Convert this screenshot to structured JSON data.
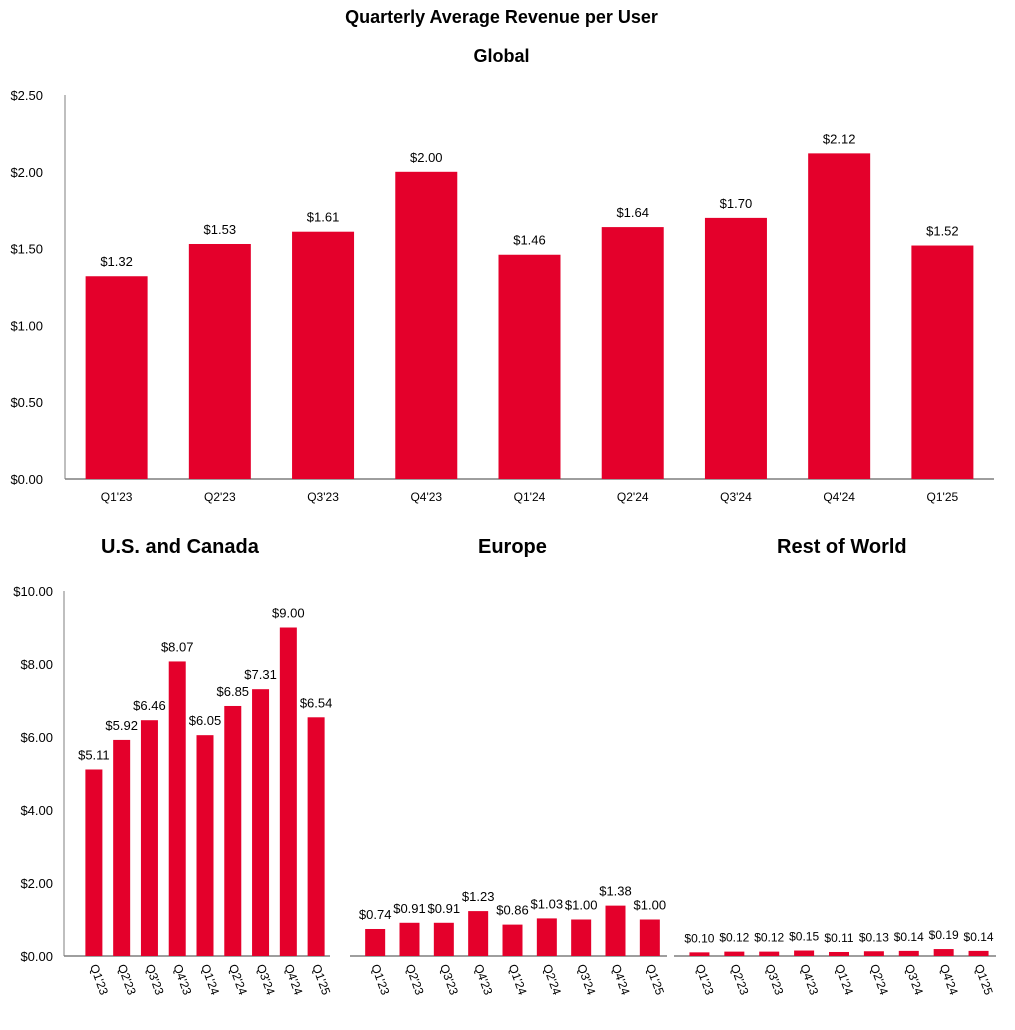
{
  "title": "Quarterly Average Revenue per User",
  "colors": {
    "bar": "#E4002B",
    "axis": "#7f7f7f"
  },
  "chart_data": [
    {
      "type": "bar",
      "title": "Global",
      "categories": [
        "Q1'23",
        "Q2'23",
        "Q3'23",
        "Q4'23",
        "Q1'24",
        "Q2'24",
        "Q3'24",
        "Q4'24",
        "Q1'25"
      ],
      "values": [
        1.32,
        1.53,
        1.61,
        2.0,
        1.46,
        1.64,
        1.7,
        2.12,
        1.52
      ],
      "value_labels": [
        "$1.32",
        "$1.53",
        "$1.61",
        "$2.00",
        "$1.46",
        "$1.64",
        "$1.70",
        "$2.12",
        "$1.52"
      ],
      "yticks": [
        "$0.00",
        "$0.50",
        "$1.00",
        "$1.50",
        "$2.00",
        "$2.50"
      ],
      "ylim": [
        0,
        2.5
      ],
      "xlabel": "",
      "ylabel": ""
    },
    {
      "type": "bar",
      "title": "U.S. and Canada",
      "categories": [
        "Q1'23",
        "Q2'23",
        "Q3'23",
        "Q4'23",
        "Q1'24",
        "Q2'24",
        "Q3'24",
        "Q4'24",
        "Q1'25"
      ],
      "values": [
        5.11,
        5.92,
        6.46,
        8.07,
        6.05,
        6.85,
        7.31,
        9.0,
        6.54
      ],
      "value_labels": [
        "$5.11",
        "$5.92",
        "$6.46",
        "$8.07",
        "$6.05",
        "$6.85",
        "$7.31",
        "$9.00",
        "$6.54"
      ],
      "yticks": [
        "$0.00",
        "$2.00",
        "$4.00",
        "$6.00",
        "$8.00",
        "$10.00"
      ],
      "ylim": [
        0,
        10
      ],
      "xlabel": "",
      "ylabel": ""
    },
    {
      "type": "bar",
      "title": "Europe",
      "categories": [
        "Q1'23",
        "Q2'23",
        "Q3'23",
        "Q4'23",
        "Q1'24",
        "Q2'24",
        "Q3'24",
        "Q4'24",
        "Q1'25"
      ],
      "values": [
        0.74,
        0.91,
        0.91,
        1.23,
        0.86,
        1.03,
        1.0,
        1.38,
        1.0
      ],
      "value_labels": [
        "$0.74",
        "$0.91",
        "$0.91",
        "$1.23",
        "$0.86",
        "$1.03",
        "$1.00",
        "$1.38",
        "$1.00"
      ],
      "ylim": [
        0,
        10
      ],
      "xlabel": "",
      "ylabel": ""
    },
    {
      "type": "bar",
      "title": "Rest of World",
      "categories": [
        "Q1'23",
        "Q2'23",
        "Q3'23",
        "Q4'23",
        "Q1'24",
        "Q2'24",
        "Q3'24",
        "Q4'24",
        "Q1'25"
      ],
      "values": [
        0.1,
        0.12,
        0.12,
        0.15,
        0.11,
        0.13,
        0.14,
        0.19,
        0.14
      ],
      "value_labels": [
        "$0.10",
        "$0.12",
        "$0.12",
        "$0.15",
        "$0.11",
        "$0.13",
        "$0.14",
        "$0.19",
        "$0.14"
      ],
      "ylim": [
        0,
        10
      ],
      "xlabel": "",
      "ylabel": ""
    }
  ]
}
